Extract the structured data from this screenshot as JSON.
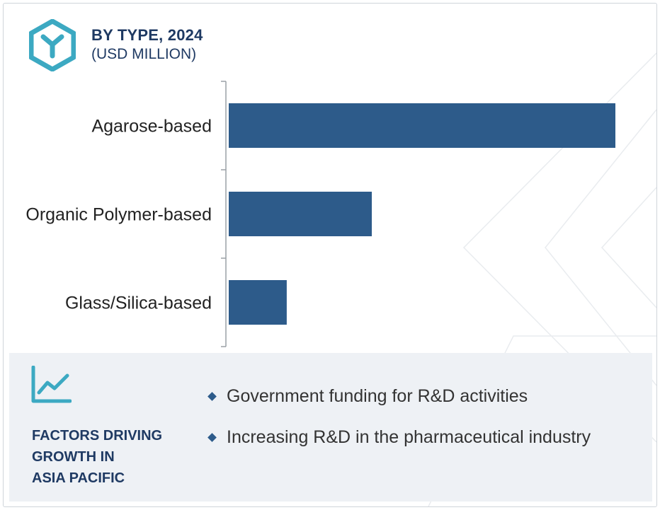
{
  "header": {
    "title": "BY TYPE, 2024",
    "subtitle": "(USD MILLION)",
    "icon": "hexagon-y-icon"
  },
  "colors": {
    "bar": "#2d5b8a",
    "accent": "#3ca9c2",
    "heading": "#1f3a63",
    "footer_bg": "#eef1f5"
  },
  "chart_data": {
    "type": "bar",
    "orientation": "horizontal",
    "categories": [
      "Agarose-based",
      "Organic Polymer-based",
      "Glass/Silica-based"
    ],
    "values": [
      100,
      37,
      15
    ],
    "title": "BY TYPE, 2024",
    "subtitle": "(USD MILLION)",
    "xlabel": "",
    "ylabel": "",
    "xlim": [
      0,
      100
    ],
    "grid": false,
    "value_labels": false
  },
  "footer": {
    "icon": "trend-line-icon",
    "title_lines": [
      "FACTORS DRIVING",
      "GROWTH IN",
      "ASIA PACIFIC"
    ],
    "bullets": [
      "Government funding for R&D activities",
      "Increasing R&D in the pharmaceutical industry"
    ]
  }
}
